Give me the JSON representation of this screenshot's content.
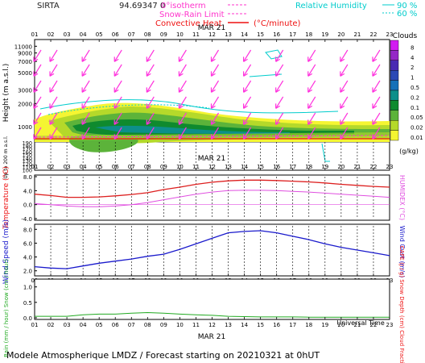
{
  "header": {
    "station": "SIRTA",
    "coords": "94.69347 0",
    "legend_isotherm": "0°isotherm",
    "legend_snow_rain": "Snow-Rain Limit",
    "legend_convective": "Convective Heat",
    "legend_convective_unit": "(°C/minute)",
    "legend_rh": "Relative Humidity",
    "rh_90": "90 %",
    "rh_60": "60 %"
  },
  "hours": [
    "01",
    "02",
    "03",
    "04",
    "05",
    "06",
    "07",
    "08",
    "09",
    "10",
    "11",
    "12",
    "13",
    "14",
    "15",
    "16",
    "17",
    "18",
    "19",
    "20",
    "21",
    "22",
    "23"
  ],
  "date_label": "MAR 21",
  "panel_height": {
    "ylabel": "Height (m a.s.l.)",
    "ylabel2": "Up to 200 m a.s.l.",
    "ticks_upper": [
      1000,
      2000,
      3000,
      5000,
      7000,
      9000,
      11000
    ],
    "ticks_lower": [
      100,
      110,
      120,
      130,
      140,
      150,
      160,
      170,
      180,
      190
    ]
  },
  "clouds_legend": {
    "title": "Clouds",
    "levels": [
      "8",
      "4",
      "2",
      "1",
      "0.5",
      "0.2",
      "0.1",
      "0.05",
      "0.02",
      "0.01"
    ],
    "colors": [
      "#d21bf2",
      "#9527c7",
      "#4a2bb3",
      "#2b49b5",
      "#1570b8",
      "#0d8f8a",
      "#0f8a2e",
      "#5cb33a",
      "#b5d92a",
      "#f5f532"
    ],
    "unit": "(g/kg)"
  },
  "panel_temperature": {
    "ylabel": "Temperature (°C)",
    "ylabel_right": "HUMIDEX (°C)",
    "yticks": [
      "-4.0",
      "0.0",
      "4.0",
      "8.0"
    ]
  },
  "panel_wind": {
    "ylabel": "Wind Speed (m/s)",
    "ylabel_right": "Wind Gust (m/s)",
    "yticks": [
      "2.0",
      "4.0",
      "6.0",
      "8.0"
    ]
  },
  "panel_rain": {
    "ylabel": "Rain (mm / hour) Snow (cm / hour)",
    "ylabel_right": "CAPE (J / g) Snow Depth (cm) Cloud Fraction",
    "yticks": [
      "0.0",
      "0.5",
      "1.0"
    ],
    "universal_time": "Universal Time"
  },
  "footer": {
    "text": "Modele Atmospherique LMDZ / Forecast starting on 20210321 at 0hUT"
  },
  "chart_data": [
    {
      "type": "line",
      "title": "",
      "x": [
        "01",
        "02",
        "03",
        "04",
        "05",
        "06",
        "07",
        "08",
        "09",
        "10",
        "11",
        "12",
        "13",
        "14",
        "15",
        "16",
        "17",
        "18",
        "19",
        "20",
        "21",
        "22",
        "23"
      ],
      "xlabel": "Universal Time",
      "ylabel": "Temperature (°C)",
      "ylim": [
        -4,
        8
      ],
      "series": [
        {
          "name": "Temperature",
          "color": "#dd1f1f",
          "values": [
            3.0,
            2.6,
            2.1,
            2.1,
            2.2,
            2.5,
            2.9,
            3.4,
            4.3,
            5.0,
            5.8,
            6.4,
            6.8,
            7.0,
            7.0,
            6.9,
            6.7,
            6.5,
            6.2,
            5.8,
            5.5,
            5.2,
            5.0
          ]
        },
        {
          "name": "HUMIDEX",
          "color": "#e04fe0",
          "values": [
            0.3,
            0.0,
            -0.4,
            -0.6,
            -0.6,
            -0.4,
            0.0,
            0.6,
            1.4,
            2.2,
            3.0,
            3.6,
            4.0,
            4.1,
            4.1,
            4.0,
            3.8,
            3.6,
            3.3,
            3.0,
            2.7,
            2.4,
            2.1
          ]
        }
      ]
    },
    {
      "type": "line",
      "title": "",
      "x": [
        "01",
        "02",
        "03",
        "04",
        "05",
        "06",
        "07",
        "08",
        "09",
        "10",
        "11",
        "12",
        "13",
        "14",
        "15",
        "16",
        "17",
        "18",
        "19",
        "20",
        "21",
        "22",
        "23"
      ],
      "ylabel": "Wind Speed (m/s)",
      "ylim": [
        0,
        8
      ],
      "series": [
        {
          "name": "Wind Speed",
          "color": "#1a1acc",
          "values": [
            2.6,
            2.4,
            2.3,
            2.7,
            3.1,
            3.4,
            3.7,
            4.1,
            4.4,
            5.1,
            5.9,
            6.7,
            7.5,
            7.7,
            7.8,
            7.5,
            7.0,
            6.5,
            5.9,
            5.4,
            5.0,
            4.6,
            4.2
          ]
        }
      ]
    },
    {
      "type": "line",
      "title": "",
      "x": [
        "01",
        "02",
        "03",
        "04",
        "05",
        "06",
        "07",
        "08",
        "09",
        "10",
        "11",
        "12",
        "13",
        "14",
        "15",
        "16",
        "17",
        "18",
        "19",
        "20",
        "21",
        "22",
        "23"
      ],
      "ylabel": "Rain (mm / hour)",
      "ylim": [
        0,
        1
      ],
      "series": [
        {
          "name": "Cloud Fraction",
          "color": "#22aa22",
          "values": [
            0.05,
            0.05,
            0.05,
            0.1,
            0.12,
            0.12,
            0.15,
            0.17,
            0.15,
            0.12,
            0.1,
            0.08,
            0.05,
            0.04,
            0.03,
            0.03,
            0.03,
            0.02,
            0.02,
            0.02,
            0.02,
            0.02,
            0.02
          ]
        }
      ]
    }
  ]
}
